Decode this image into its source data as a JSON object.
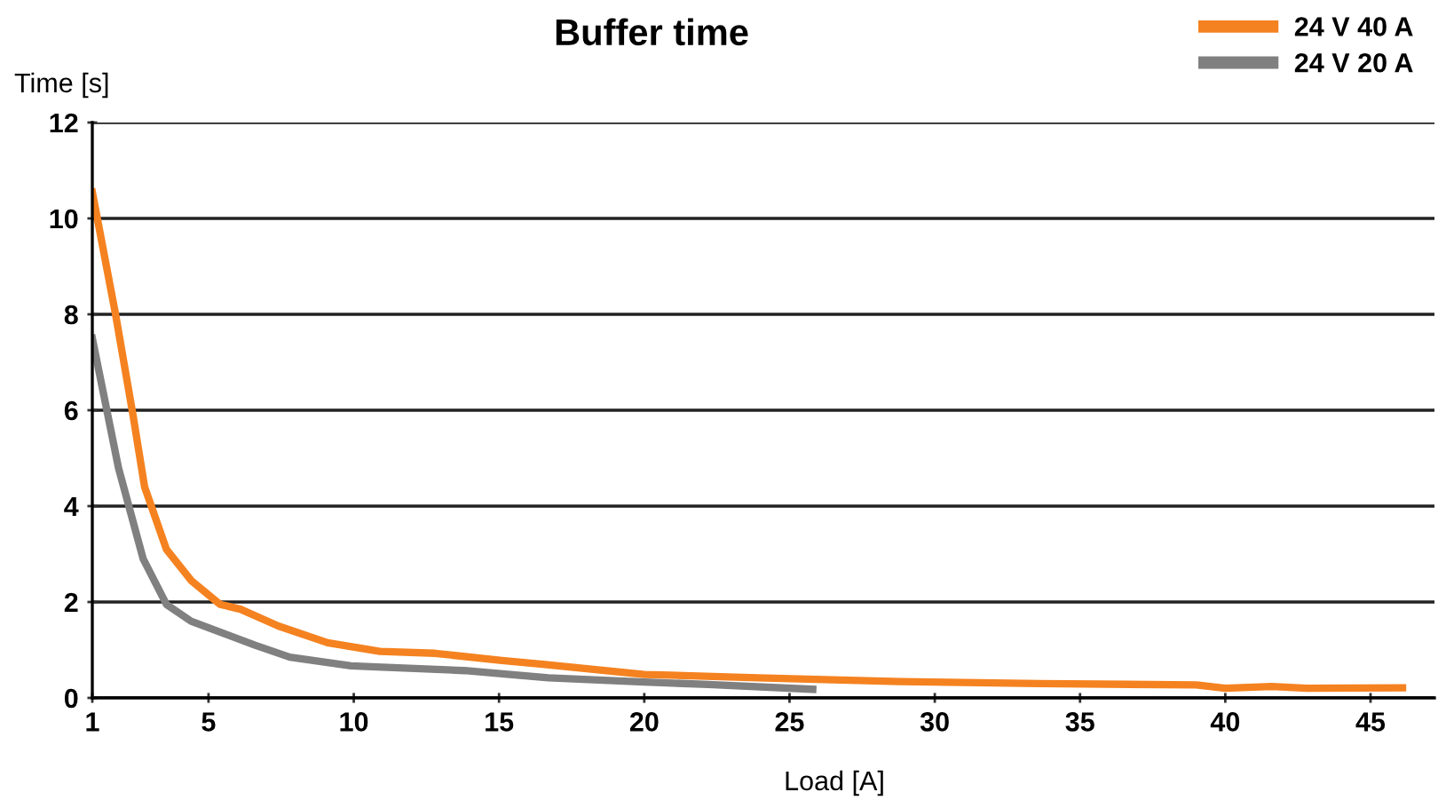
{
  "chart_data": {
    "type": "line",
    "title": "Buffer time",
    "xlabel": "Load [A]",
    "ylabel": "Time [s]",
    "series": [
      {
        "name": "24 V 40 A",
        "color": "#f58220",
        "x": [
          1,
          1.8,
          2.4,
          2.8,
          3.55,
          4.4,
          5.4,
          6.1,
          7.4,
          9.1,
          10.9,
          12.8,
          15.1,
          16.5,
          20,
          23.9,
          28.8,
          33.6,
          39,
          40,
          41.6,
          42.8,
          46.1
        ],
        "values": [
          10.55,
          8.0,
          5.9,
          4.4,
          3.1,
          2.45,
          1.95,
          1.85,
          1.5,
          1.15,
          0.97,
          0.93,
          0.78,
          0.7,
          0.49,
          0.42,
          0.34,
          0.3,
          0.27,
          0.2,
          0.24,
          0.2,
          0.21
        ]
      },
      {
        "name": "24 V 20 A",
        "color": "#808080",
        "x": [
          1,
          1.9,
          2.75,
          3.55,
          4.4,
          5.5,
          6.6,
          7.8,
          9.9,
          10.6,
          13.8,
          16.7,
          20,
          22.2,
          25.8
        ],
        "values": [
          7.5,
          4.8,
          2.9,
          1.95,
          1.6,
          1.35,
          1.1,
          0.85,
          0.67,
          0.65,
          0.57,
          0.42,
          0.33,
          0.28,
          0.18
        ]
      }
    ],
    "xlim": [
      1,
      47.2
    ],
    "xticks": [
      1,
      5,
      10,
      15,
      20,
      25,
      30,
      35,
      40,
      45
    ],
    "ylim": [
      0,
      12
    ],
    "yticks": [
      0,
      2,
      4,
      6,
      8,
      10,
      12
    ],
    "grid": "y",
    "legend": "top right",
    "marker": "none",
    "line_style": "solid"
  }
}
